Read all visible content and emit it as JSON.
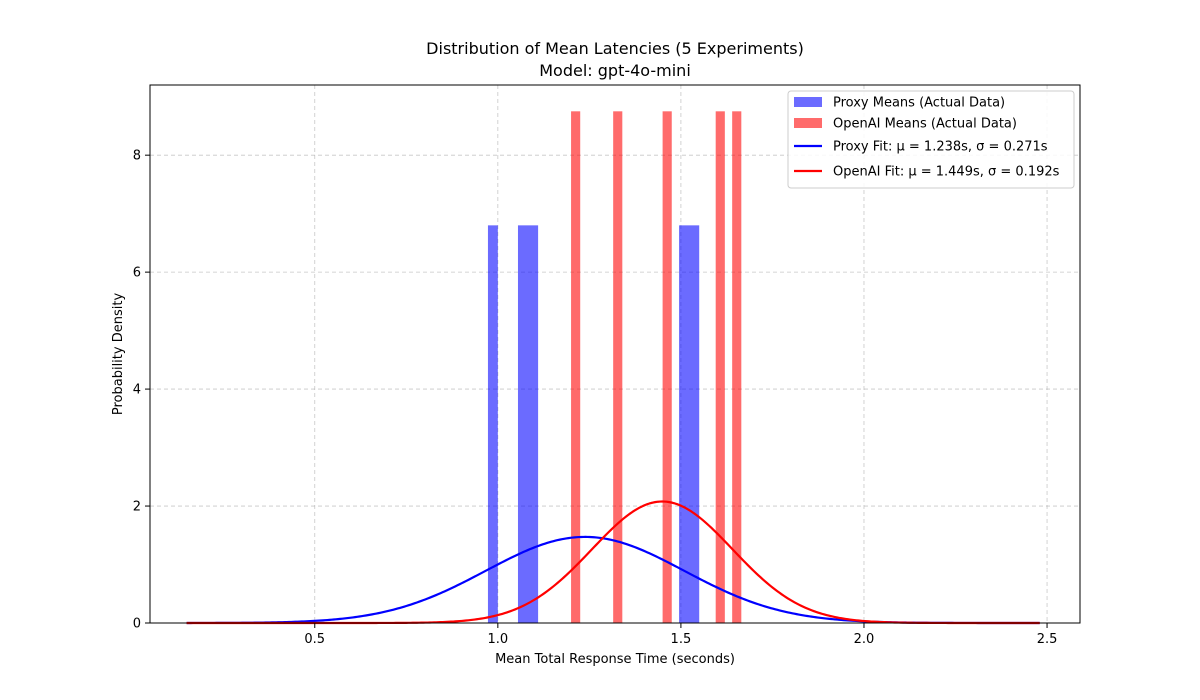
{
  "chart_data": {
    "type": "bar+line",
    "title": "Distribution of Mean Latencies (5 Experiments)",
    "subtitle": "Model: gpt-4o-mini",
    "xlabel": "Mean Total Response Time (seconds)",
    "ylabel": "Probability Density",
    "xlim": [
      0.05,
      2.59
    ],
    "ylim": [
      0,
      9.2
    ],
    "xticks": [
      0.5,
      1.0,
      1.5,
      2.0,
      2.5
    ],
    "xtick_labels": [
      "0.5",
      "1.0",
      "1.5",
      "2.0",
      "2.5"
    ],
    "yticks": [
      0,
      2,
      4,
      6,
      8
    ],
    "ytick_labels": [
      "0",
      "2",
      "4",
      "6",
      "8"
    ],
    "grid": true,
    "legend_position": "top-right",
    "colors": {
      "proxy": "#0000ff",
      "openai": "#ff0000"
    },
    "bars": [
      {
        "series": "Proxy Means (Actual Data)",
        "color": "#0000ff",
        "opacity": 0.58,
        "data": [
          {
            "x0": 0.973,
            "x1": 1.0,
            "height": 6.8
          },
          {
            "x0": 1.055,
            "x1": 1.11,
            "height": 6.8
          },
          {
            "x0": 1.495,
            "x1": 1.55,
            "height": 6.8
          }
        ]
      },
      {
        "series": "OpenAI Means (Actual Data)",
        "color": "#ff0000",
        "opacity": 0.58,
        "data": [
          {
            "x0": 1.2,
            "x1": 1.225,
            "height": 8.75
          },
          {
            "x0": 1.315,
            "x1": 1.34,
            "height": 8.75
          },
          {
            "x0": 1.45,
            "x1": 1.475,
            "height": 8.75
          },
          {
            "x0": 1.595,
            "x1": 1.62,
            "height": 8.75
          },
          {
            "x0": 1.64,
            "x1": 1.665,
            "height": 8.75
          }
        ]
      }
    ],
    "fits": [
      {
        "name": "Proxy Fit",
        "mu": 1.238,
        "sigma": 0.271,
        "color": "#0000ff",
        "x_range": [
          0.15,
          2.48
        ]
      },
      {
        "name": "OpenAI Fit",
        "mu": 1.449,
        "sigma": 0.192,
        "color": "#ff0000",
        "x_range": [
          0.15,
          2.48
        ]
      }
    ],
    "legend": [
      {
        "kind": "bar",
        "color": "#0000ff",
        "opacity": 0.58,
        "label": "Proxy Means (Actual Data)"
      },
      {
        "kind": "bar",
        "color": "#ff0000",
        "opacity": 0.58,
        "label": "OpenAI Means (Actual Data)"
      },
      {
        "kind": "line",
        "color": "#0000ff",
        "label": "Proxy Fit: μ = 1.238s, σ = 0.271s"
      },
      {
        "kind": "line",
        "color": "#ff0000",
        "label": "OpenAI Fit: μ = 1.449s, σ = 0.192s"
      }
    ]
  }
}
